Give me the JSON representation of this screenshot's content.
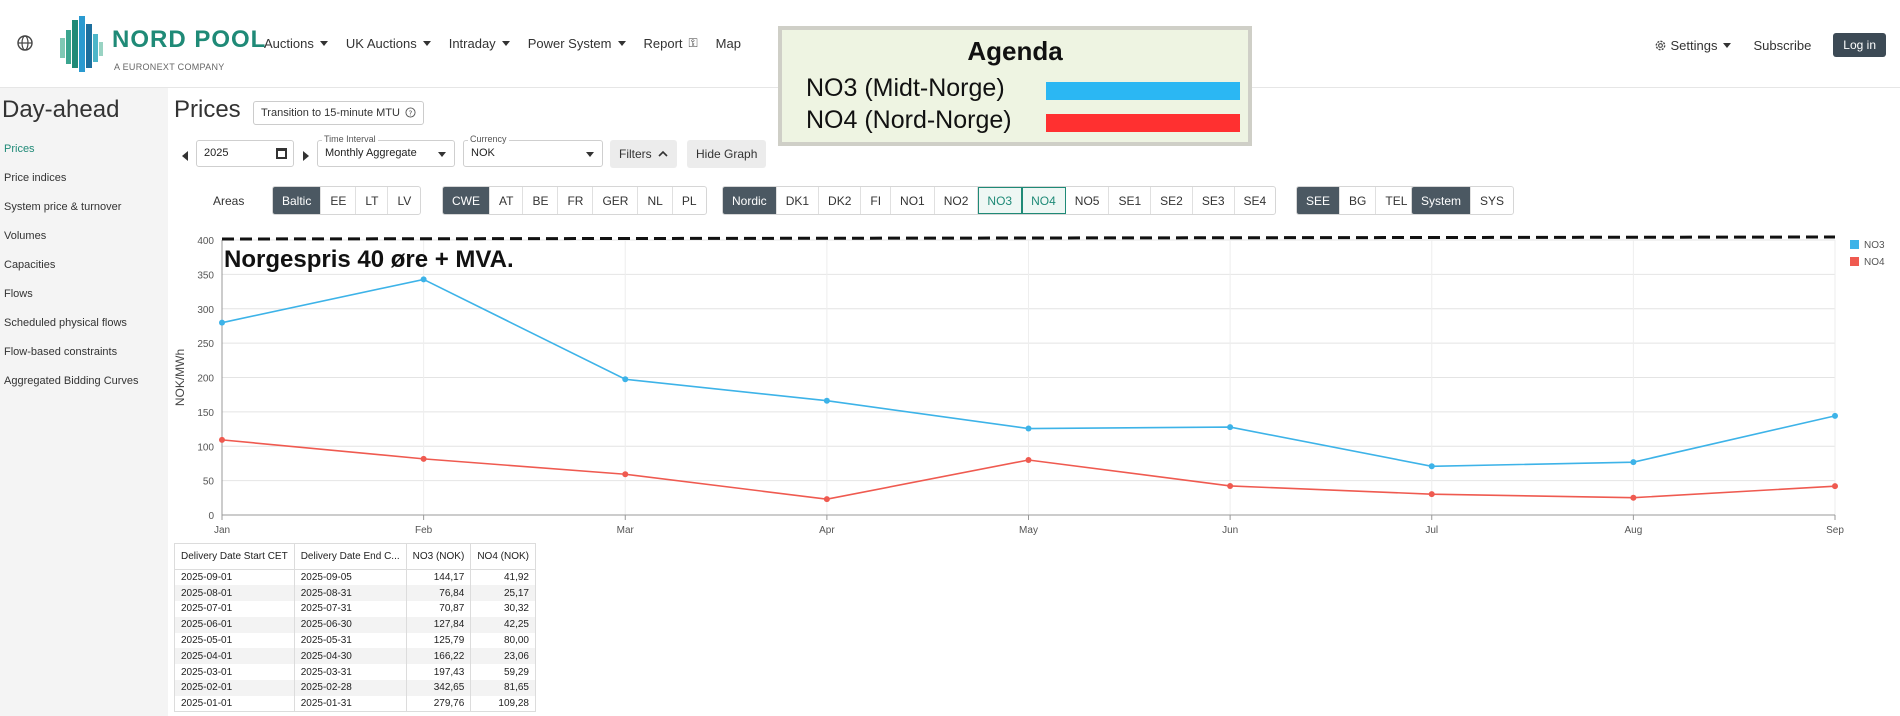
{
  "nav": {
    "logo_text": "NORD POOL",
    "logo_sub": "A EURONEXT COMPANY",
    "items": [
      {
        "label": "Auctions",
        "caret": true
      },
      {
        "label": "UK Auctions",
        "caret": true
      },
      {
        "label": "Intraday",
        "caret": true
      },
      {
        "label": "Power System",
        "caret": true
      },
      {
        "label": "Report",
        "lock": true
      },
      {
        "label": "Map"
      }
    ],
    "settings": "Settings",
    "subscribe": "Subscribe",
    "login": "Log in"
  },
  "agenda": {
    "title": "Agenda",
    "rows": [
      {
        "label": "NO3 (Midt-Norge)",
        "color": "#2bb7f3"
      },
      {
        "label": "NO4 (Nord-Norge)",
        "color": "#ff3030"
      }
    ]
  },
  "sidebar": {
    "title": "Day-ahead",
    "items": [
      {
        "label": "Prices",
        "active": true
      },
      {
        "label": "Price indices"
      },
      {
        "label": "System price & turnover"
      },
      {
        "label": "Volumes"
      },
      {
        "label": "Capacities"
      },
      {
        "label": "Flows"
      },
      {
        "label": "Scheduled physical flows"
      },
      {
        "label": "Flow-based constraints"
      },
      {
        "label": "Aggregated Bidding Curves"
      }
    ]
  },
  "main": {
    "title": "Prices",
    "mtu_button": "Transition to 15-minute MTU",
    "year": "2025",
    "time_interval_label": "Time Interval",
    "time_interval_value": "Monthly Aggregate",
    "currency_label": "Currency",
    "currency_value": "NOK",
    "filters": "Filters",
    "hide_graph": "Hide Graph",
    "areas_label": "Areas",
    "area_groups": [
      {
        "buttons": [
          {
            "label": "Baltic",
            "dark": true
          },
          {
            "label": "EE"
          },
          {
            "label": "LT"
          },
          {
            "label": "LV"
          }
        ]
      },
      {
        "buttons": [
          {
            "label": "CWE",
            "dark": true
          },
          {
            "label": "AT"
          },
          {
            "label": "BE"
          },
          {
            "label": "FR"
          },
          {
            "label": "GER"
          },
          {
            "label": "NL"
          },
          {
            "label": "PL"
          }
        ]
      },
      {
        "buttons": [
          {
            "label": "Nordic",
            "dark": true
          },
          {
            "label": "DK1"
          },
          {
            "label": "DK2"
          },
          {
            "label": "FI"
          },
          {
            "label": "NO1"
          },
          {
            "label": "NO2"
          },
          {
            "label": "NO3",
            "selected": true
          },
          {
            "label": "NO4",
            "selected": true
          },
          {
            "label": "NO5"
          },
          {
            "label": "SE1"
          },
          {
            "label": "SE2"
          },
          {
            "label": "SE3"
          },
          {
            "label": "SE4"
          }
        ]
      },
      {
        "buttons": [
          {
            "label": "SEE",
            "dark": true
          },
          {
            "label": "BG"
          },
          {
            "label": "TEL"
          }
        ]
      },
      {
        "buttons": [
          {
            "label": "System",
            "dark": true
          },
          {
            "label": "SYS"
          }
        ]
      }
    ]
  },
  "chart_data": {
    "type": "line",
    "categories": [
      "Jan",
      "Feb",
      "Mar",
      "Apr",
      "May",
      "Jun",
      "Jul",
      "Aug",
      "Sep"
    ],
    "series": [
      {
        "name": "NO3",
        "color": "#3db3e8",
        "values": [
          279.76,
          342.65,
          197.43,
          166.22,
          125.79,
          127.84,
          70.87,
          76.84,
          144.17
        ]
      },
      {
        "name": "NO4",
        "color": "#ef5a50",
        "values": [
          109.28,
          81.65,
          59.29,
          23.06,
          80.0,
          42.25,
          30.32,
          25.17,
          41.92
        ]
      }
    ],
    "ylabel": "NOK/MWh",
    "ylim": [
      0,
      400
    ],
    "yticks": [
      0,
      50,
      100,
      150,
      200,
      250,
      300,
      350,
      400
    ],
    "grid": true,
    "legend": "top-right",
    "annotation": {
      "text": "Norgespris 40 øre + MVA.",
      "y": 400
    }
  },
  "table": {
    "headers": [
      "Delivery Date Start CET",
      "Delivery Date End C...",
      "NO3 (NOK)",
      "NO4 (NOK)"
    ],
    "rows": [
      [
        "2025-09-01",
        "2025-09-05",
        "144,17",
        "41,92"
      ],
      [
        "2025-08-01",
        "2025-08-31",
        "76,84",
        "25,17"
      ],
      [
        "2025-07-01",
        "2025-07-31",
        "70,87",
        "30,32"
      ],
      [
        "2025-06-01",
        "2025-06-30",
        "127,84",
        "42,25"
      ],
      [
        "2025-05-01",
        "2025-05-31",
        "125,79",
        "80,00"
      ],
      [
        "2025-04-01",
        "2025-04-30",
        "166,22",
        "23,06"
      ],
      [
        "2025-03-01",
        "2025-03-31",
        "197,43",
        "59,29"
      ],
      [
        "2025-02-01",
        "2025-02-28",
        "342,65",
        "81,65"
      ],
      [
        "2025-01-01",
        "2025-01-31",
        "279,76",
        "109,28"
      ]
    ]
  }
}
